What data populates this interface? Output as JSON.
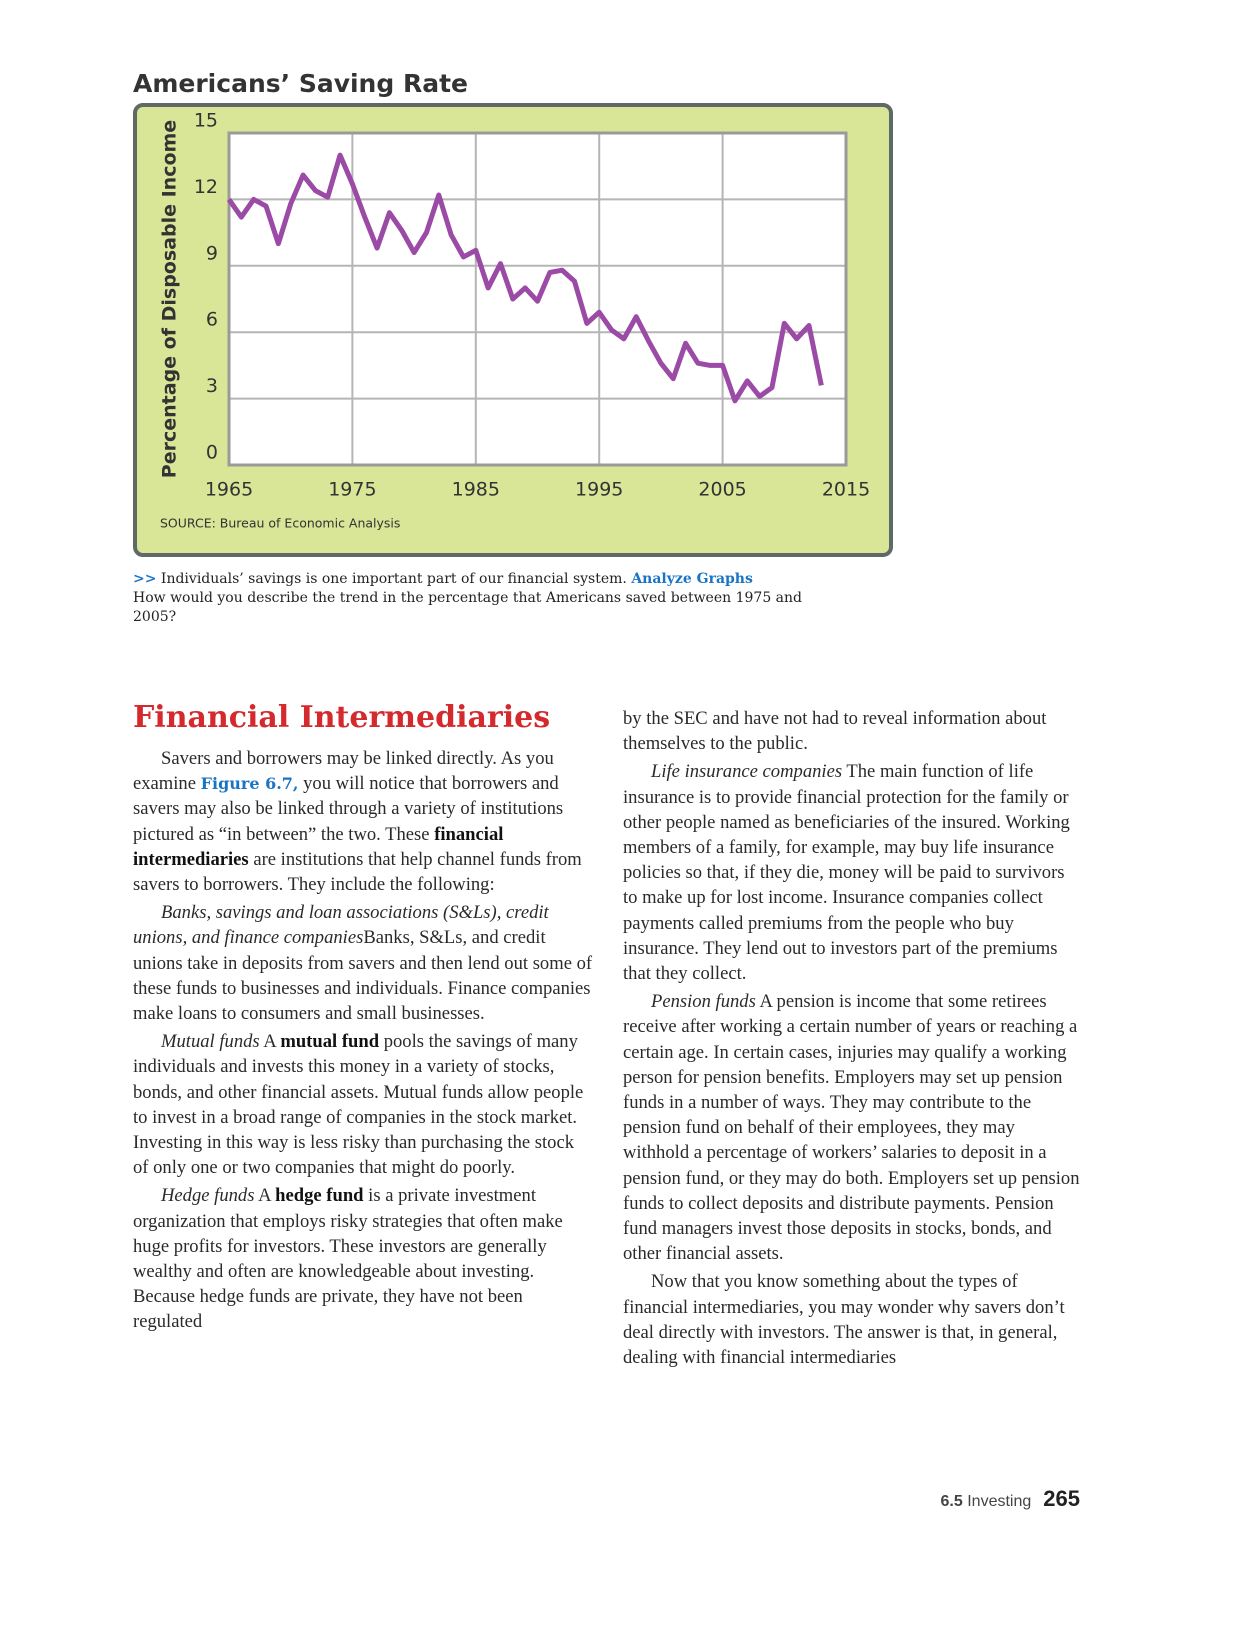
{
  "chart_data": {
    "type": "line",
    "title": "Americans’ Saving Rate",
    "y_label": "Percentage  of Disposable Income",
    "source": "SOURCE: Bureau of Economic Analysis",
    "x": [
      1965,
      1966,
      1967,
      1968,
      1969,
      1970,
      1971,
      1972,
      1973,
      1974,
      1975,
      1976,
      1977,
      1978,
      1979,
      1980,
      1981,
      1982,
      1983,
      1984,
      1985,
      1986,
      1987,
      1988,
      1989,
      1990,
      1991,
      1992,
      1993,
      1994,
      1995,
      1996,
      1997,
      1998,
      1999,
      2000,
      2001,
      2002,
      2003,
      2004,
      2005,
      2006,
      2007,
      2008,
      2009,
      2010,
      2011,
      2012,
      2013
    ],
    "values": [
      12.0,
      11.2,
      12.0,
      11.7,
      10.0,
      11.8,
      13.1,
      12.4,
      12.1,
      14.0,
      12.7,
      11.2,
      9.8,
      11.4,
      10.6,
      9.6,
      10.5,
      12.2,
      10.4,
      9.4,
      9.7,
      8.0,
      9.1,
      7.5,
      8.0,
      7.4,
      8.7,
      8.8,
      8.3,
      6.4,
      6.9,
      6.1,
      5.7,
      6.7,
      5.6,
      4.6,
      3.9,
      5.5,
      4.6,
      4.5,
      4.5,
      2.9,
      3.8,
      3.1,
      3.5,
      6.4,
      5.7,
      6.3,
      3.6
    ],
    "color": "#9b4aa6",
    "xlim": [
      1965,
      2015
    ],
    "xticks": [
      1965,
      1975,
      1985,
      1995,
      2005,
      2015
    ],
    "ylim": [
      0,
      15
    ],
    "yticks": [
      0,
      3,
      6,
      9,
      12,
      15
    ],
    "grid": true
  },
  "caption": {
    "marker": ">>",
    "text": "Individuals’ savings is one important part of our financial system.",
    "link": "Analyze Graphs",
    "question": "How would you describe the trend in the percentage that Americans saved between 1975 and 2005?"
  },
  "section": {
    "heading": "Financial Intermediaries",
    "columns": [
      {
        "paragraphs": [
          [
            "Savers and borrowers may be linked directly. As you examine ",
            "Figure 6.7,",
            " you will notice that borrowers and savers may also be linked through a variety of institutions pictured as “in between” the two. These ",
            "financial intermediaries",
            " are institutions that help channel funds from savers to borrowers. They include the following:"
          ],
          [
            "Banks, savings and loan associations (S&Ls), credit unions, and finance companies",
            "Banks, S&Ls, and credit unions take in deposits from savers and then lend out some of these funds to businesses and individuals. Finance companies make loans to consumers and small businesses."
          ],
          [
            "Mutual funds",
            " A ",
            "mutual fund",
            " pools the savings of many individuals and invests this money in a variety of stocks, bonds, and other financial assets. Mutual funds allow people to invest in a broad range of companies in the stock market. Investing in this way is less risky than purchasing the stock of only one or two companies that might do poorly."
          ],
          [
            "Hedge funds",
            " A ",
            "hedge fund",
            " is a private investment organization that employs risky strategies that often make huge profits for investors. These investors are generally wealthy and often are knowledgeable about investing. Because hedge funds are private, they have not been regulated"
          ]
        ]
      },
      {
        "paragraphs": [
          [
            "by the SEC and have not had to reveal information about themselves to the public."
          ],
          [
            "Life insurance companies",
            " The main function of life insurance is to provide financial protection for the family or other people named as beneficiaries of the insured. Working members of a family, for example, may buy life insurance policies so that, if they die, money will be paid to survivors to make up for lost income. Insurance companies collect payments called premiums from the people who buy insurance. They lend out to investors part of the premiums that they collect."
          ],
          [
            "Pension funds",
            " A pension is income that some retirees receive after working a certain number of years or reaching a certain age. In certain cases, injuries may qualify a working person for pension benefits. Employers may set up pension funds in a number of ways. They may contribute to the pension fund on behalf of their employees, they may withhold a percentage of workers’ salaries to deposit in a pension fund, or they may do both. Employers set up pension funds to collect deposits and distribute payments. Pension fund managers invest those deposits in stocks, bonds, and other financial assets."
          ],
          [
            "Now that you know something about the types of financial intermediaries, you may wonder why savers don’t deal directly with investors. The answer is that, in general, dealing with financial intermediaries"
          ]
        ]
      }
    ]
  },
  "footer": {
    "section_number": "6.5",
    "section_title": "Investing",
    "page_number": "265"
  }
}
